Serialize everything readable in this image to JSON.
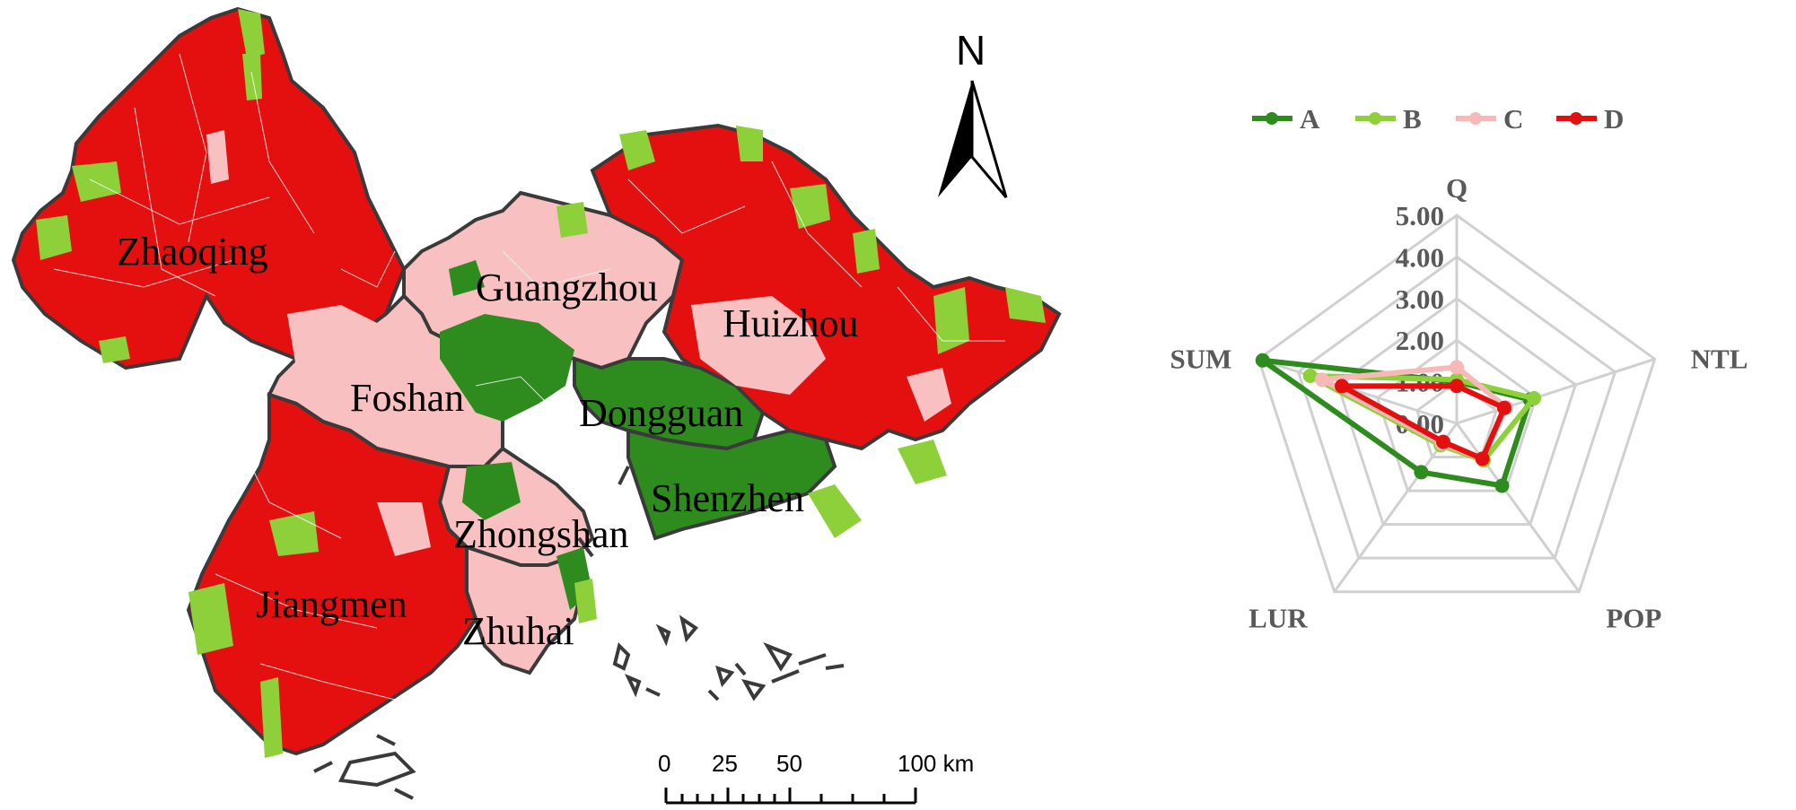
{
  "map": {
    "cities": [
      {
        "name": "Zhaoqing"
      },
      {
        "name": "Guangzhou"
      },
      {
        "name": "Huizhou"
      },
      {
        "name": "Foshan"
      },
      {
        "name": "Dongguan"
      },
      {
        "name": "Shenzhen"
      },
      {
        "name": "Zhongshan"
      },
      {
        "name": "Jiangmen"
      },
      {
        "name": "Zhuhai"
      }
    ],
    "north_arrow": "N",
    "north_icon": "north-arrow-icon",
    "scale_bar": {
      "ticks": [
        "0",
        "25",
        "50",
        "100 km"
      ]
    },
    "colors": {
      "A": "#2e8b1e",
      "B": "#8ed03a",
      "C": "#f8c0c0",
      "D": "#e41010",
      "boundary": "#3a3a3a",
      "sub_boundary": "#ffffff"
    }
  },
  "chart_data": {
    "type": "radar",
    "axes": [
      "Q",
      "NTL",
      "POP",
      "LUR",
      "SUM"
    ],
    "ticks": [
      "0.00",
      "1.00",
      "2.00",
      "3.00",
      "4.00",
      "5.00"
    ],
    "range": [
      0,
      5
    ],
    "legend_position": "top",
    "series": [
      {
        "name": "A",
        "color": "#2e8b1e",
        "values": [
          1.0,
          1.85,
          1.85,
          1.45,
          4.9
        ]
      },
      {
        "name": "B",
        "color": "#8ed03a",
        "values": [
          1.05,
          1.95,
          1.1,
          0.65,
          3.7
        ]
      },
      {
        "name": "C",
        "color": "#f8b8b8",
        "values": [
          1.35,
          1.25,
          1.05,
          0.6,
          3.4
        ]
      },
      {
        "name": "D",
        "color": "#e41010",
        "values": [
          0.9,
          1.2,
          1.05,
          0.55,
          2.9
        ]
      }
    ]
  }
}
